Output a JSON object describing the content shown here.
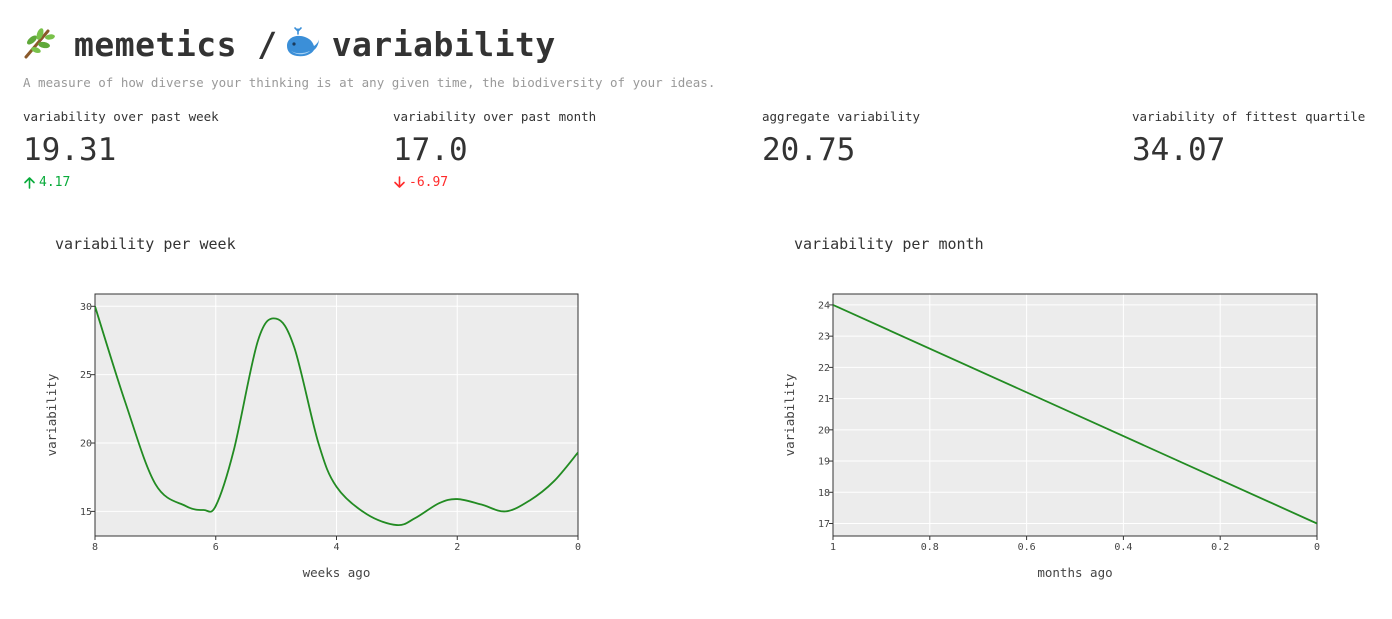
{
  "header": {
    "title_part1": "memetics / ",
    "title_part2": "variability",
    "icon_left": "branch-leaf-icon",
    "icon_right": "whale-icon",
    "subtitle": "A measure of how diverse your thinking is at any given time, the biodiversity of your ideas."
  },
  "metrics": [
    {
      "label": "variability over past week",
      "value": "19.31",
      "delta": "4.17",
      "direction": "up"
    },
    {
      "label": "variability over past month",
      "value": "17.0",
      "delta": "-6.97",
      "direction": "down"
    },
    {
      "label": "aggregate variability",
      "value": "20.75"
    },
    {
      "label": "variability of fittest quartile",
      "value": "34.07"
    }
  ],
  "colors": {
    "line": "#228b22",
    "plot_bg": "#ececec",
    "grid": "#ffffff",
    "delta_up": "#09ab3b",
    "delta_down": "#ff2b2b"
  },
  "chart_data": [
    {
      "type": "line",
      "title": "variability per week",
      "xlabel": "weeks ago",
      "ylabel": "variability",
      "x_reversed": true,
      "xlim": [
        8,
        0
      ],
      "ylim": [
        13.2,
        30.9
      ],
      "xticks": [
        8,
        6,
        4,
        2,
        0
      ],
      "yticks": [
        15,
        20,
        25,
        30
      ],
      "grid": true,
      "series": [
        {
          "x": [
            8,
            7.5,
            7,
            6.5,
            6.2,
            6,
            5.7,
            5.3,
            5,
            4.7,
            4.3,
            4,
            3.5,
            3,
            2.7,
            2.3,
            2,
            1.6,
            1.2,
            0.8,
            0.4,
            0
          ],
          "y": [
            30.0,
            23.0,
            17.0,
            15.4,
            15.1,
            15.4,
            19.5,
            27.5,
            29.1,
            27.0,
            20.0,
            16.8,
            14.8,
            14.0,
            14.5,
            15.6,
            15.9,
            15.5,
            15.0,
            15.8,
            17.2,
            19.31
          ]
        }
      ]
    },
    {
      "type": "line",
      "title": "variability per month",
      "xlabel": "months ago",
      "ylabel": "variability",
      "x_reversed": true,
      "xlim": [
        1,
        0
      ],
      "ylim": [
        16.6,
        24.35
      ],
      "xticks": [
        1,
        0.8,
        0.6,
        0.4,
        0.2,
        0
      ],
      "yticks": [
        17,
        18,
        19,
        20,
        21,
        22,
        23,
        24
      ],
      "grid": true,
      "series": [
        {
          "x": [
            1,
            0
          ],
          "y": [
            24.0,
            17.0
          ]
        }
      ]
    }
  ]
}
